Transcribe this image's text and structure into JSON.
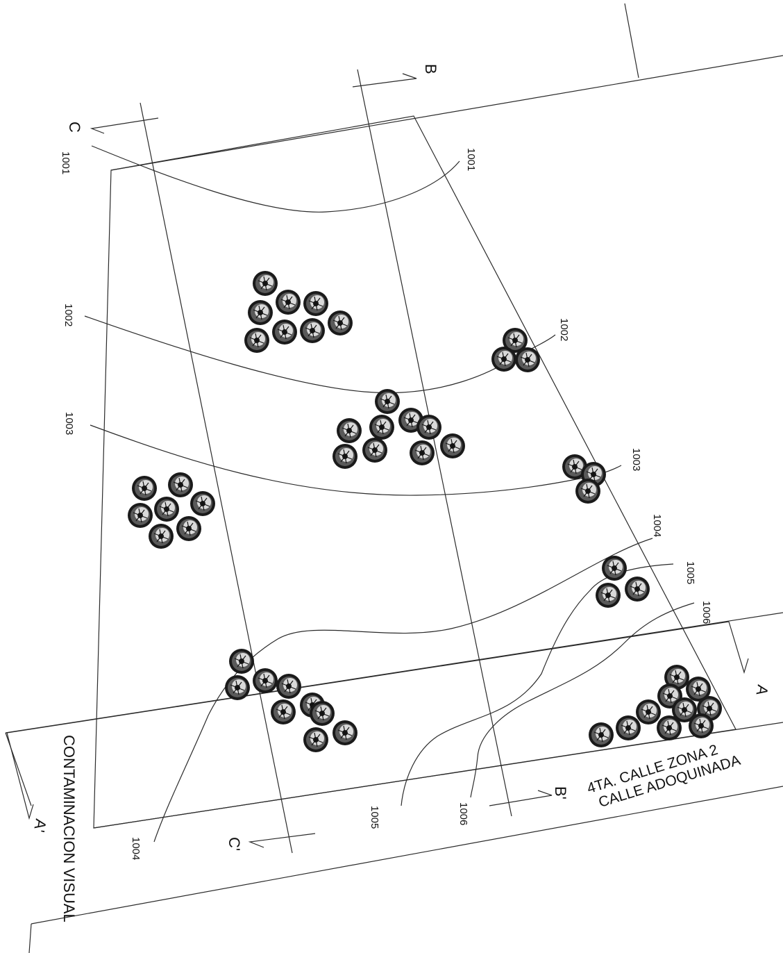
{
  "plan": {
    "street": {
      "line1": "4TA. CALLE ZONA 2",
      "line2": "CALLE ADOQUINADA"
    },
    "side_note": "CONTAMINACION VISUAL",
    "sections": {
      "a": "A",
      "a_prime": "A'",
      "b": "B",
      "b_prime": "B'",
      "c": "C",
      "c_prime": "C'"
    },
    "contours": {
      "l1001": "1001",
      "r1001": "1001",
      "l1002": "1002",
      "r1002": "1002",
      "l1003": "1003",
      "r1003": "1003",
      "r1004": "1004",
      "b1004": "1004",
      "r1005": "1005",
      "b1005": "1005",
      "r1006": "1006",
      "b1006": "1006"
    },
    "tree_groups": [
      "trees-group-1",
      "trees-group-2",
      "trees-group-3",
      "trees-group-4",
      "trees-group-5",
      "trees-group-6",
      "trees-group-7",
      "trees-group-8",
      "trees-group-9"
    ],
    "tree_icon": "tree-icon"
  }
}
